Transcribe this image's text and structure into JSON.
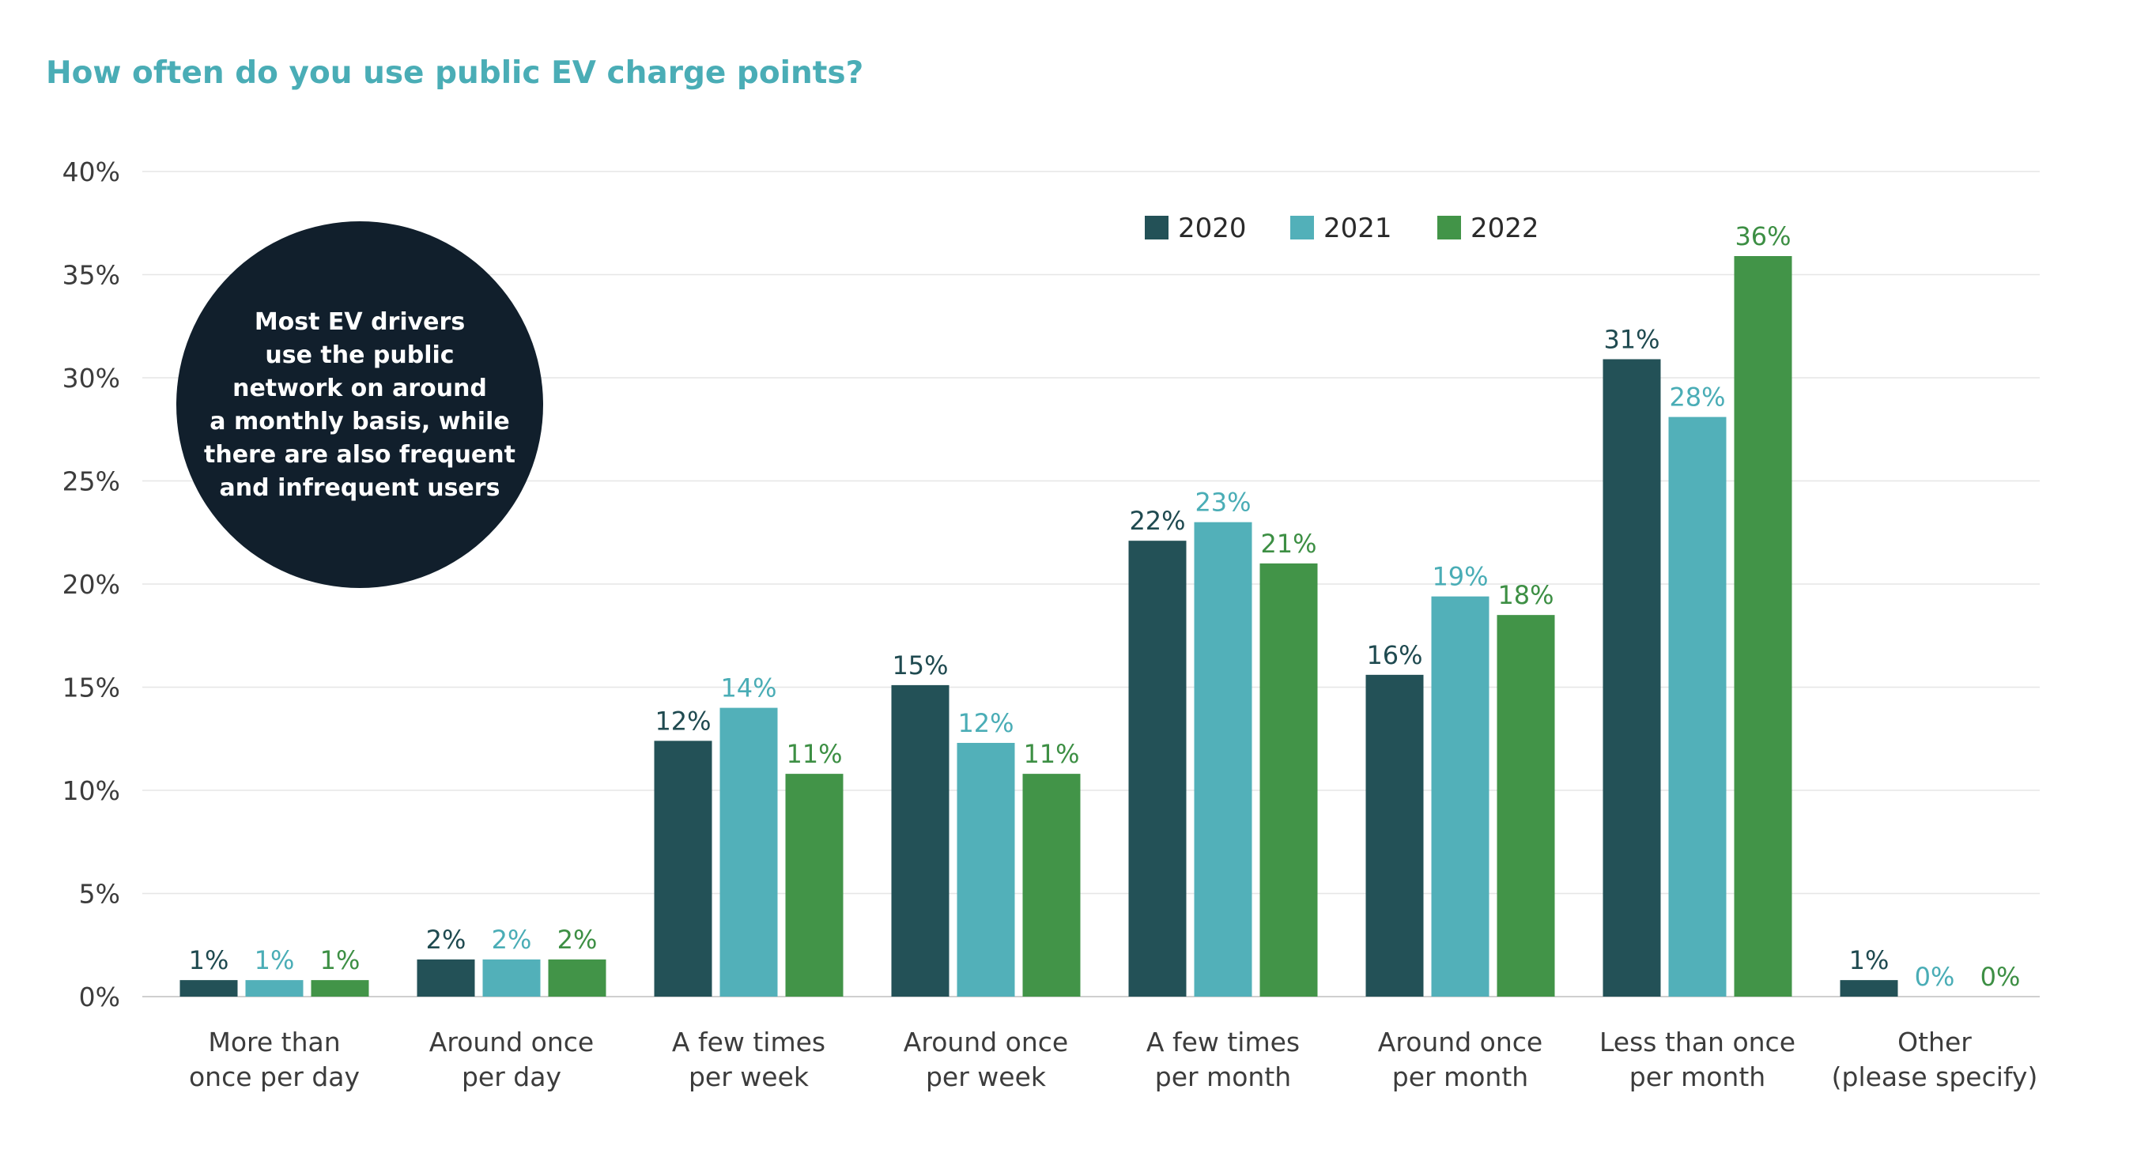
{
  "chart_data": {
    "type": "bar",
    "title": "How often do you use public EV charge points?",
    "xlabel": "",
    "ylabel": "",
    "ylim": [
      0,
      40
    ],
    "yticks": [
      "0%",
      "5%",
      "10%",
      "15%",
      "20%",
      "25%",
      "30%",
      "35%",
      "40%"
    ],
    "grid": true,
    "legend_position": "top-right",
    "categories": [
      [
        "More than",
        "once per day"
      ],
      [
        "Around once",
        "per day"
      ],
      [
        "A few times",
        "per week"
      ],
      [
        "Around once",
        "per week"
      ],
      [
        "A few times",
        "per month"
      ],
      [
        "Around once",
        "per month"
      ],
      [
        "Less than once",
        "per month"
      ],
      [
        "Other",
        "(please specify)"
      ]
    ],
    "series": [
      {
        "name": "2020",
        "color": "#235157",
        "label_color": "#1f4a50",
        "values": [
          0.8,
          1.8,
          12.4,
          15.1,
          22.1,
          15.6,
          30.9,
          0.8
        ],
        "labels": [
          "1%",
          "2%",
          "12%",
          "15%",
          "22%",
          "16%",
          "31%",
          "1%"
        ]
      },
      {
        "name": "2021",
        "color": "#52b0b9",
        "label_color": "#4aadb6",
        "values": [
          0.8,
          1.8,
          14.0,
          12.3,
          23.0,
          19.4,
          28.1,
          0
        ],
        "labels": [
          "1%",
          "2%",
          "14%",
          "12%",
          "23%",
          "19%",
          "28%",
          "0%"
        ]
      },
      {
        "name": "2022",
        "color": "#429448",
        "label_color": "#3d8f44",
        "values": [
          0.8,
          1.8,
          10.8,
          10.8,
          21.0,
          18.5,
          35.9,
          0
        ],
        "labels": [
          "1%",
          "2%",
          "11%",
          "11%",
          "21%",
          "18%",
          "36%",
          "0%"
        ]
      }
    ],
    "annotation": {
      "lines": [
        "Most EV drivers",
        "use the public",
        "network on around",
        "a monthly basis, while",
        "there are also frequent",
        "and infrequent users"
      ],
      "fill": "#111f2c"
    }
  }
}
